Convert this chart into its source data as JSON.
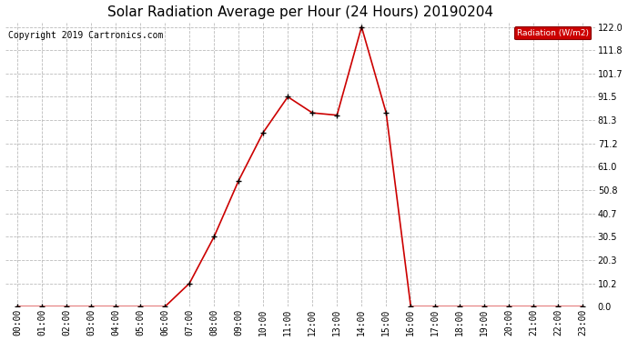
{
  "title": "Solar Radiation Average per Hour (24 Hours) 20190204",
  "copyright_text": "Copyright 2019 Cartronics.com",
  "legend_label": "Radiation (W/m2)",
  "hours": [
    0,
    1,
    2,
    3,
    4,
    5,
    6,
    7,
    8,
    9,
    10,
    11,
    12,
    13,
    14,
    15,
    16,
    17,
    18,
    19,
    20,
    21,
    22,
    23
  ],
  "hour_labels": [
    "00:00",
    "01:00",
    "02:00",
    "03:00",
    "04:00",
    "05:00",
    "06:00",
    "07:00",
    "08:00",
    "09:00",
    "10:00",
    "11:00",
    "12:00",
    "13:00",
    "14:00",
    "15:00",
    "16:00",
    "17:00",
    "18:00",
    "19:00",
    "20:00",
    "21:00",
    "22:00",
    "23:00"
  ],
  "values": [
    0.0,
    0.0,
    0.0,
    0.0,
    0.0,
    0.0,
    0.0,
    10.2,
    30.5,
    55.0,
    76.0,
    91.5,
    84.5,
    83.5,
    122.0,
    84.5,
    0.0,
    0.0,
    0.0,
    0.0,
    0.0,
    0.0,
    0.0,
    0.0
  ],
  "line_color": "#cc0000",
  "marker_color": "#000000",
  "legend_bg": "#cc0000",
  "legend_text_color": "#ffffff",
  "background_color": "#ffffff",
  "grid_color": "#bbbbbb",
  "title_fontsize": 11,
  "copyright_fontsize": 7,
  "tick_fontsize": 7,
  "ymin": 0.0,
  "ymax": 122.0,
  "yticks": [
    0.0,
    10.2,
    20.3,
    30.5,
    40.7,
    50.8,
    61.0,
    71.2,
    81.3,
    91.5,
    101.7,
    111.8,
    122.0
  ]
}
